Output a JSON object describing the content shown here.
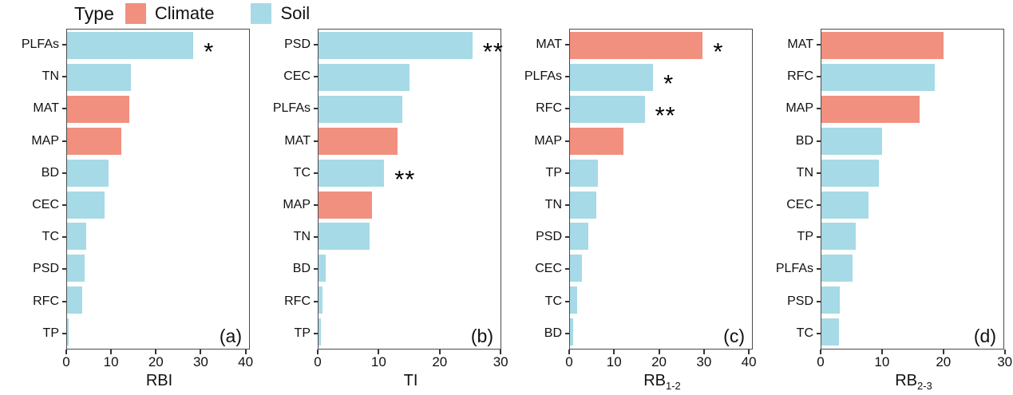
{
  "legend": {
    "title": "Type",
    "items": [
      {
        "label": "Climate",
        "color": "#F1907F"
      },
      {
        "label": "Soil",
        "color": "#A6DAE6"
      }
    ]
  },
  "colors": {
    "Climate": "#F1907F",
    "Soil": "#A6DAE6",
    "panel_border": "#4a4a4a",
    "text": "#111111"
  },
  "chart_data": [
    {
      "type": "bar",
      "orientation": "horizontal",
      "panel_label": "(a)",
      "xlabel": "RBI",
      "xlabel_sub": "",
      "xticks": [
        0,
        10,
        20,
        30,
        40
      ],
      "xlim": [
        0,
        41.5
      ],
      "legend_position": "top",
      "grid": false,
      "bars": [
        {
          "category": "PLFAs",
          "value": 28.8,
          "type": "Soil",
          "sig": "*"
        },
        {
          "category": "TN",
          "value": 14.5,
          "type": "Soil",
          "sig": ""
        },
        {
          "category": "MAT",
          "value": 14.2,
          "type": "Climate",
          "sig": ""
        },
        {
          "category": "MAP",
          "value": 12.3,
          "type": "Climate",
          "sig": ""
        },
        {
          "category": "BD",
          "value": 9.4,
          "type": "Soil",
          "sig": ""
        },
        {
          "category": "CEC",
          "value": 8.5,
          "type": "Soil",
          "sig": ""
        },
        {
          "category": "TC",
          "value": 4.3,
          "type": "Soil",
          "sig": ""
        },
        {
          "category": "PSD",
          "value": 4.0,
          "type": "Soil",
          "sig": ""
        },
        {
          "category": "RFC",
          "value": 3.4,
          "type": "Soil",
          "sig": ""
        },
        {
          "category": "TP",
          "value": 0.4,
          "type": "Soil",
          "sig": ""
        }
      ]
    },
    {
      "type": "bar",
      "orientation": "horizontal",
      "panel_label": "(b)",
      "xlabel": "TI",
      "xlabel_sub": "",
      "xticks": [
        0,
        10,
        20,
        30
      ],
      "xlim": [
        0,
        30.5
      ],
      "legend_position": "top",
      "grid": false,
      "bars": [
        {
          "category": "PSD",
          "value": 25.8,
          "type": "Soil",
          "sig": "**"
        },
        {
          "category": "CEC",
          "value": 15.2,
          "type": "Soil",
          "sig": ""
        },
        {
          "category": "PLFAs",
          "value": 14.0,
          "type": "Soil",
          "sig": ""
        },
        {
          "category": "MAT",
          "value": 13.3,
          "type": "Climate",
          "sig": ""
        },
        {
          "category": "TC",
          "value": 11.0,
          "type": "Soil",
          "sig": "**"
        },
        {
          "category": "MAP",
          "value": 9.0,
          "type": "Climate",
          "sig": ""
        },
        {
          "category": "TN",
          "value": 8.6,
          "type": "Soil",
          "sig": ""
        },
        {
          "category": "BD",
          "value": 1.2,
          "type": "Soil",
          "sig": ""
        },
        {
          "category": "RFC",
          "value": 0.7,
          "type": "Soil",
          "sig": ""
        },
        {
          "category": "TP",
          "value": 0.4,
          "type": "Soil",
          "sig": ""
        }
      ]
    },
    {
      "type": "bar",
      "orientation": "horizontal",
      "panel_label": "(c)",
      "xlabel": "RB",
      "xlabel_sub": "1-2",
      "xticks": [
        0,
        10,
        20,
        30,
        40
      ],
      "xlim": [
        0,
        41.4
      ],
      "legend_position": "top",
      "grid": false,
      "bars": [
        {
          "category": "MAT",
          "value": 30.2,
          "type": "Climate",
          "sig": "*"
        },
        {
          "category": "PLFAs",
          "value": 18.9,
          "type": "Soil",
          "sig": "*"
        },
        {
          "category": "RFC",
          "value": 17.0,
          "type": "Soil",
          "sig": "**"
        },
        {
          "category": "MAP",
          "value": 12.2,
          "type": "Climate",
          "sig": ""
        },
        {
          "category": "TP",
          "value": 6.3,
          "type": "Soil",
          "sig": ""
        },
        {
          "category": "TN",
          "value": 6.0,
          "type": "Soil",
          "sig": ""
        },
        {
          "category": "PSD",
          "value": 4.1,
          "type": "Soil",
          "sig": ""
        },
        {
          "category": "CEC",
          "value": 2.7,
          "type": "Soil",
          "sig": ""
        },
        {
          "category": "TC",
          "value": 1.6,
          "type": "Soil",
          "sig": ""
        },
        {
          "category": "BD",
          "value": 0.8,
          "type": "Soil",
          "sig": ""
        }
      ]
    },
    {
      "type": "bar",
      "orientation": "horizontal",
      "panel_label": "(d)",
      "xlabel": "RB",
      "xlabel_sub": "2-3",
      "xticks": [
        0,
        10,
        20,
        30
      ],
      "xlim": [
        0,
        30.3
      ],
      "legend_position": "top",
      "grid": false,
      "bars": [
        {
          "category": "MAT",
          "value": 20.3,
          "type": "Climate",
          "sig": ""
        },
        {
          "category": "RFC",
          "value": 18.9,
          "type": "Soil",
          "sig": ""
        },
        {
          "category": "MAP",
          "value": 16.4,
          "type": "Climate",
          "sig": ""
        },
        {
          "category": "BD",
          "value": 10.1,
          "type": "Soil",
          "sig": ""
        },
        {
          "category": "TN",
          "value": 9.6,
          "type": "Soil",
          "sig": ""
        },
        {
          "category": "CEC",
          "value": 7.8,
          "type": "Soil",
          "sig": ""
        },
        {
          "category": "TP",
          "value": 5.7,
          "type": "Soil",
          "sig": ""
        },
        {
          "category": "PLFAs",
          "value": 5.2,
          "type": "Soil",
          "sig": ""
        },
        {
          "category": "PSD",
          "value": 3.0,
          "type": "Soil",
          "sig": ""
        },
        {
          "category": "TC",
          "value": 2.9,
          "type": "Soil",
          "sig": ""
        }
      ]
    }
  ]
}
